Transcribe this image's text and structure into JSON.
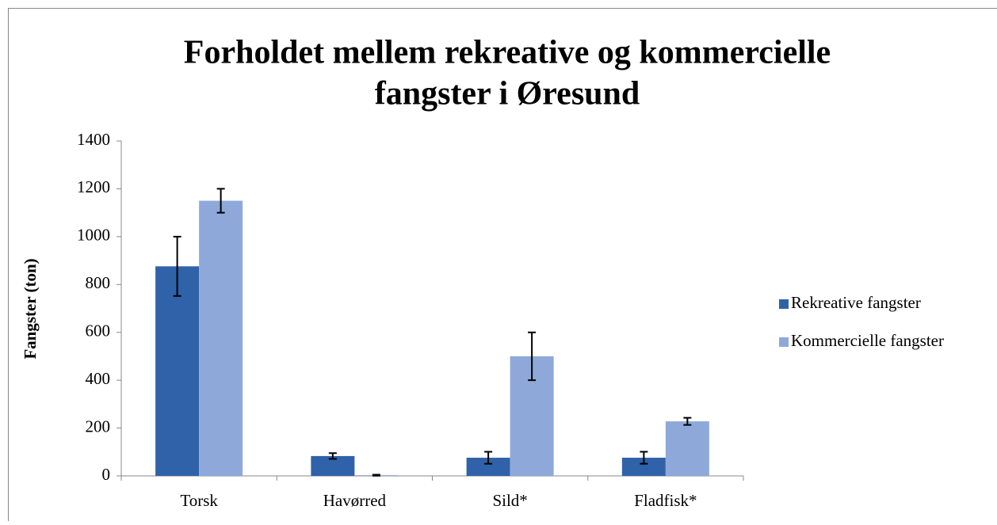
{
  "chart_data": {
    "type": "bar",
    "title": [
      "Forholdet mellem rekreative og kommercielle",
      "fangster i Øresund"
    ],
    "ylabel": "Fangster (ton)",
    "categories": [
      "Torsk",
      "Havørred",
      "Sild*",
      "Fladfisk*"
    ],
    "series": [
      {
        "name": "Rekreative fangster",
        "color": "#2f62a8",
        "values": [
          876,
          83,
          76,
          76
        ],
        "errors": [
          124,
          12,
          25,
          25
        ]
      },
      {
        "name": "Kommercielle fangster",
        "color": "#8ea9d9",
        "values": [
          1150,
          3,
          500,
          228
        ],
        "errors": [
          50,
          2,
          100,
          15
        ]
      }
    ],
    "ylim": [
      0,
      1400
    ],
    "yticks": [
      0,
      200,
      400,
      600,
      800,
      1000,
      1200,
      1400
    ],
    "grid": false,
    "legend": "right"
  }
}
